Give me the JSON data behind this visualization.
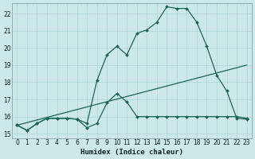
{
  "xlabel": "Humidex (Indice chaleur)",
  "bg_color": "#cce8e8",
  "grid_color": "#aad4d4",
  "line_color": "#1a6655",
  "xlim": [
    -0.5,
    23.5
  ],
  "ylim": [
    14.75,
    22.6
  ],
  "xticks": [
    0,
    1,
    2,
    3,
    4,
    5,
    6,
    7,
    8,
    9,
    10,
    11,
    12,
    13,
    14,
    15,
    16,
    17,
    18,
    19,
    20,
    21,
    22,
    23
  ],
  "yticks": [
    15,
    16,
    17,
    18,
    19,
    20,
    21,
    22
  ],
  "upper_x": [
    0,
    1,
    2,
    3,
    4,
    5,
    6,
    7,
    8,
    9,
    10,
    11,
    12,
    13,
    14,
    15,
    16,
    17,
    18,
    19,
    20,
    21,
    22,
    23
  ],
  "upper_y": [
    15.5,
    15.2,
    15.6,
    15.9,
    15.9,
    15.9,
    15.85,
    15.6,
    18.1,
    19.6,
    20.1,
    19.6,
    20.85,
    21.05,
    21.5,
    22.4,
    22.3,
    22.3,
    21.5,
    20.1,
    18.4,
    17.5,
    15.9,
    15.85
  ],
  "lower_x": [
    0,
    1,
    2,
    3,
    4,
    5,
    6,
    7,
    8,
    9,
    10,
    11,
    12,
    13,
    14,
    15,
    16,
    17,
    18,
    19,
    20,
    21,
    22,
    23
  ],
  "lower_y": [
    15.5,
    15.2,
    15.6,
    15.9,
    15.9,
    15.9,
    15.85,
    15.35,
    15.6,
    16.8,
    17.35,
    16.85,
    16.0,
    16.0,
    16.0,
    16.0,
    16.0,
    16.0,
    16.0,
    16.0,
    16.0,
    16.0,
    16.0,
    15.9
  ],
  "trend_x": [
    0,
    23
  ],
  "trend_y": [
    15.5,
    19.0
  ]
}
